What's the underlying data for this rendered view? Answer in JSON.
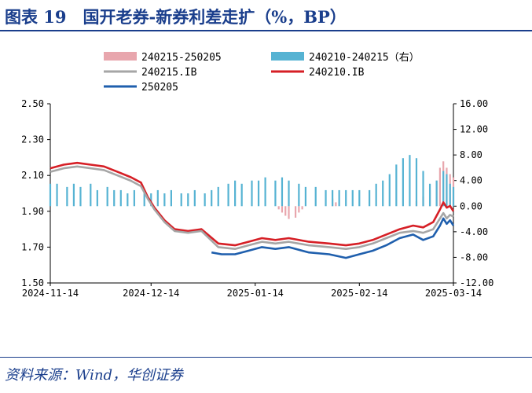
{
  "header": {
    "title": "图表 19　国开老券-新券利差走扩（%，BP）"
  },
  "footer": {
    "source": "资料来源：Wind，华创证券"
  },
  "colors": {
    "bar_left": "#e8a6ad",
    "bar_right": "#56b3d3",
    "line_240215": "#a6a6a6",
    "line_240210": "#d61f26",
    "line_250205": "#1f5fad",
    "title": "#1a3e8c"
  },
  "chart_data": {
    "type": "line",
    "title": "",
    "xlabel": "",
    "ylabel": "",
    "x_ticks": [
      "2024-11-14",
      "2024-12-14",
      "2025-01-14",
      "2025-02-14",
      "2025-03-14"
    ],
    "x_range": [
      "2024-11-14",
      "2025-03-14"
    ],
    "ylim_left": [
      1.5,
      2.5
    ],
    "yticks_left": [
      "2.50",
      "2.30",
      "2.10",
      "1.90",
      "1.70",
      "1.50"
    ],
    "ylim_right": [
      -12,
      16
    ],
    "yticks_right": [
      "16.00",
      "12.00",
      "8.00",
      "4.00",
      "0.00",
      "-4.00",
      "-8.00",
      "-12.00"
    ],
    "grid": false,
    "legend": [
      {
        "label": "240215-250205",
        "kind": "bar",
        "color_key": "bar_left"
      },
      {
        "label": "240210-240215（右）",
        "kind": "bar",
        "color_key": "bar_right"
      },
      {
        "label": "240215.IB",
        "kind": "line",
        "color_key": "line_240215"
      },
      {
        "label": "240210.IB",
        "kind": "line",
        "color_key": "line_240210"
      },
      {
        "label": "250205",
        "kind": "line",
        "color_key": "line_250205"
      }
    ],
    "series": [
      {
        "name": "240210.IB",
        "axis": "left",
        "type": "line",
        "color_key": "line_240210",
        "points": [
          [
            "2024-11-14",
            2.14
          ],
          [
            "2024-11-18",
            2.16
          ],
          [
            "2024-11-22",
            2.17
          ],
          [
            "2024-11-26",
            2.16
          ],
          [
            "2024-11-30",
            2.15
          ],
          [
            "2024-12-04",
            2.12
          ],
          [
            "2024-12-08",
            2.09
          ],
          [
            "2024-12-11",
            2.06
          ],
          [
            "2024-12-13",
            1.98
          ],
          [
            "2024-12-15",
            1.92
          ],
          [
            "2024-12-18",
            1.85
          ],
          [
            "2024-12-21",
            1.8
          ],
          [
            "2024-12-25",
            1.79
          ],
          [
            "2024-12-29",
            1.8
          ],
          [
            "2025-01-03",
            1.72
          ],
          [
            "2025-01-08",
            1.71
          ],
          [
            "2025-01-12",
            1.73
          ],
          [
            "2025-01-16",
            1.75
          ],
          [
            "2025-01-20",
            1.74
          ],
          [
            "2025-01-24",
            1.75
          ],
          [
            "2025-01-30",
            1.73
          ],
          [
            "2025-02-05",
            1.72
          ],
          [
            "2025-02-10",
            1.71
          ],
          [
            "2025-02-14",
            1.72
          ],
          [
            "2025-02-18",
            1.74
          ],
          [
            "2025-02-22",
            1.77
          ],
          [
            "2025-02-26",
            1.8
          ],
          [
            "2025-03-02",
            1.82
          ],
          [
            "2025-03-05",
            1.81
          ],
          [
            "2025-03-08",
            1.84
          ],
          [
            "2025-03-10",
            1.91
          ],
          [
            "2025-03-11",
            1.95
          ],
          [
            "2025-03-12",
            1.92
          ],
          [
            "2025-03-13",
            1.93
          ],
          [
            "2025-03-14",
            1.9
          ]
        ]
      },
      {
        "name": "240215.IB",
        "axis": "left",
        "type": "line",
        "color_key": "line_240215",
        "points": [
          [
            "2024-11-14",
            2.12
          ],
          [
            "2024-11-18",
            2.14
          ],
          [
            "2024-11-22",
            2.15
          ],
          [
            "2024-11-26",
            2.14
          ],
          [
            "2024-11-30",
            2.13
          ],
          [
            "2024-12-04",
            2.1
          ],
          [
            "2024-12-08",
            2.07
          ],
          [
            "2024-12-11",
            2.04
          ],
          [
            "2024-12-13",
            1.97
          ],
          [
            "2024-12-15",
            1.91
          ],
          [
            "2024-12-18",
            1.84
          ],
          [
            "2024-12-21",
            1.79
          ],
          [
            "2024-12-25",
            1.78
          ],
          [
            "2024-12-29",
            1.79
          ],
          [
            "2025-01-03",
            1.7
          ],
          [
            "2025-01-08",
            1.69
          ],
          [
            "2025-01-12",
            1.71
          ],
          [
            "2025-01-16",
            1.73
          ],
          [
            "2025-01-20",
            1.72
          ],
          [
            "2025-01-24",
            1.73
          ],
          [
            "2025-01-30",
            1.71
          ],
          [
            "2025-02-05",
            1.7
          ],
          [
            "2025-02-10",
            1.69
          ],
          [
            "2025-02-14",
            1.7
          ],
          [
            "2025-02-18",
            1.72
          ],
          [
            "2025-02-22",
            1.75
          ],
          [
            "2025-02-26",
            1.78
          ],
          [
            "2025-03-02",
            1.79
          ],
          [
            "2025-03-05",
            1.78
          ],
          [
            "2025-03-08",
            1.8
          ],
          [
            "2025-03-10",
            1.86
          ],
          [
            "2025-03-11",
            1.89
          ],
          [
            "2025-03-12",
            1.86
          ],
          [
            "2025-03-13",
            1.88
          ],
          [
            "2025-03-14",
            1.87
          ]
        ]
      },
      {
        "name": "250205",
        "axis": "left",
        "type": "line",
        "color_key": "line_250205",
        "points": [
          [
            "2025-01-01",
            1.67
          ],
          [
            "2025-01-04",
            1.66
          ],
          [
            "2025-01-08",
            1.66
          ],
          [
            "2025-01-12",
            1.68
          ],
          [
            "2025-01-16",
            1.7
          ],
          [
            "2025-01-20",
            1.69
          ],
          [
            "2025-01-24",
            1.7
          ],
          [
            "2025-01-30",
            1.67
          ],
          [
            "2025-02-05",
            1.66
          ],
          [
            "2025-02-10",
            1.64
          ],
          [
            "2025-02-14",
            1.66
          ],
          [
            "2025-02-18",
            1.68
          ],
          [
            "2025-02-22",
            1.71
          ],
          [
            "2025-02-26",
            1.75
          ],
          [
            "2025-03-02",
            1.77
          ],
          [
            "2025-03-05",
            1.74
          ],
          [
            "2025-03-08",
            1.76
          ],
          [
            "2025-03-10",
            1.82
          ],
          [
            "2025-03-11",
            1.86
          ],
          [
            "2025-03-12",
            1.83
          ],
          [
            "2025-03-13",
            1.85
          ],
          [
            "2025-03-14",
            1.82
          ]
        ]
      },
      {
        "name": "240215-250205",
        "axis": "right",
        "type": "bar",
        "color_key": "bar_left",
        "points": [
          [
            "2025-01-21",
            -0.5
          ],
          [
            "2025-01-22",
            -1.0
          ],
          [
            "2025-01-23",
            -1.5
          ],
          [
            "2025-01-24",
            -2.0
          ],
          [
            "2025-01-26",
            -1.8
          ],
          [
            "2025-01-27",
            -1.0
          ],
          [
            "2025-01-28",
            -0.5
          ],
          [
            "2025-02-06",
            1.2
          ],
          [
            "2025-02-07",
            0.6
          ],
          [
            "2025-03-03",
            0.8
          ],
          [
            "2025-03-05",
            1.5
          ],
          [
            "2025-03-07",
            2.5
          ],
          [
            "2025-03-09",
            4.0
          ],
          [
            "2025-03-10",
            6.0
          ],
          [
            "2025-03-11",
            7.0
          ],
          [
            "2025-03-12",
            6.0
          ],
          [
            "2025-03-13",
            5.0
          ],
          [
            "2025-03-14",
            4.5
          ]
        ]
      },
      {
        "name": "240210-240215（右）",
        "axis": "right",
        "type": "bar",
        "color_key": "bar_right",
        "points": [
          [
            "2024-11-14",
            3.5
          ],
          [
            "2024-11-16",
            3.5
          ],
          [
            "2024-11-19",
            3.0
          ],
          [
            "2024-11-21",
            3.5
          ],
          [
            "2024-11-23",
            3.0
          ],
          [
            "2024-11-26",
            3.5
          ],
          [
            "2024-11-28",
            2.5
          ],
          [
            "2024-12-01",
            3.0
          ],
          [
            "2024-12-03",
            2.5
          ],
          [
            "2024-12-05",
            2.5
          ],
          [
            "2024-12-07",
            2.0
          ],
          [
            "2024-12-09",
            2.5
          ],
          [
            "2024-12-12",
            2.0
          ],
          [
            "2024-12-14",
            2.0
          ],
          [
            "2024-12-16",
            2.5
          ],
          [
            "2024-12-18",
            2.0
          ],
          [
            "2024-12-20",
            2.5
          ],
          [
            "2024-12-23",
            2.0
          ],
          [
            "2024-12-25",
            2.0
          ],
          [
            "2024-12-27",
            2.5
          ],
          [
            "2024-12-30",
            2.0
          ],
          [
            "2025-01-01",
            2.5
          ],
          [
            "2025-01-03",
            3.0
          ],
          [
            "2025-01-06",
            3.5
          ],
          [
            "2025-01-08",
            4.0
          ],
          [
            "2025-01-10",
            3.5
          ],
          [
            "2025-01-13",
            4.0
          ],
          [
            "2025-01-15",
            4.0
          ],
          [
            "2025-01-17",
            4.5
          ],
          [
            "2025-01-20",
            4.0
          ],
          [
            "2025-01-22",
            4.5
          ],
          [
            "2025-01-24",
            4.0
          ],
          [
            "2025-01-27",
            3.5
          ],
          [
            "2025-01-29",
            3.0
          ],
          [
            "2025-02-01",
            3.0
          ],
          [
            "2025-02-04",
            2.5
          ],
          [
            "2025-02-06",
            2.5
          ],
          [
            "2025-02-08",
            2.5
          ],
          [
            "2025-02-10",
            2.5
          ],
          [
            "2025-02-12",
            2.5
          ],
          [
            "2025-02-14",
            2.5
          ],
          [
            "2025-02-17",
            2.5
          ],
          [
            "2025-02-19",
            3.5
          ],
          [
            "2025-02-21",
            4.0
          ],
          [
            "2025-02-23",
            5.0
          ],
          [
            "2025-02-25",
            6.5
          ],
          [
            "2025-02-27",
            7.5
          ],
          [
            "2025-03-01",
            8.0
          ],
          [
            "2025-03-03",
            7.5
          ],
          [
            "2025-03-05",
            5.5
          ],
          [
            "2025-03-07",
            3.5
          ],
          [
            "2025-03-09",
            4.0
          ],
          [
            "2025-03-11",
            5.5
          ],
          [
            "2025-03-12",
            5.0
          ],
          [
            "2025-03-13",
            3.5
          ],
          [
            "2025-03-14",
            3.0
          ]
        ]
      }
    ]
  }
}
